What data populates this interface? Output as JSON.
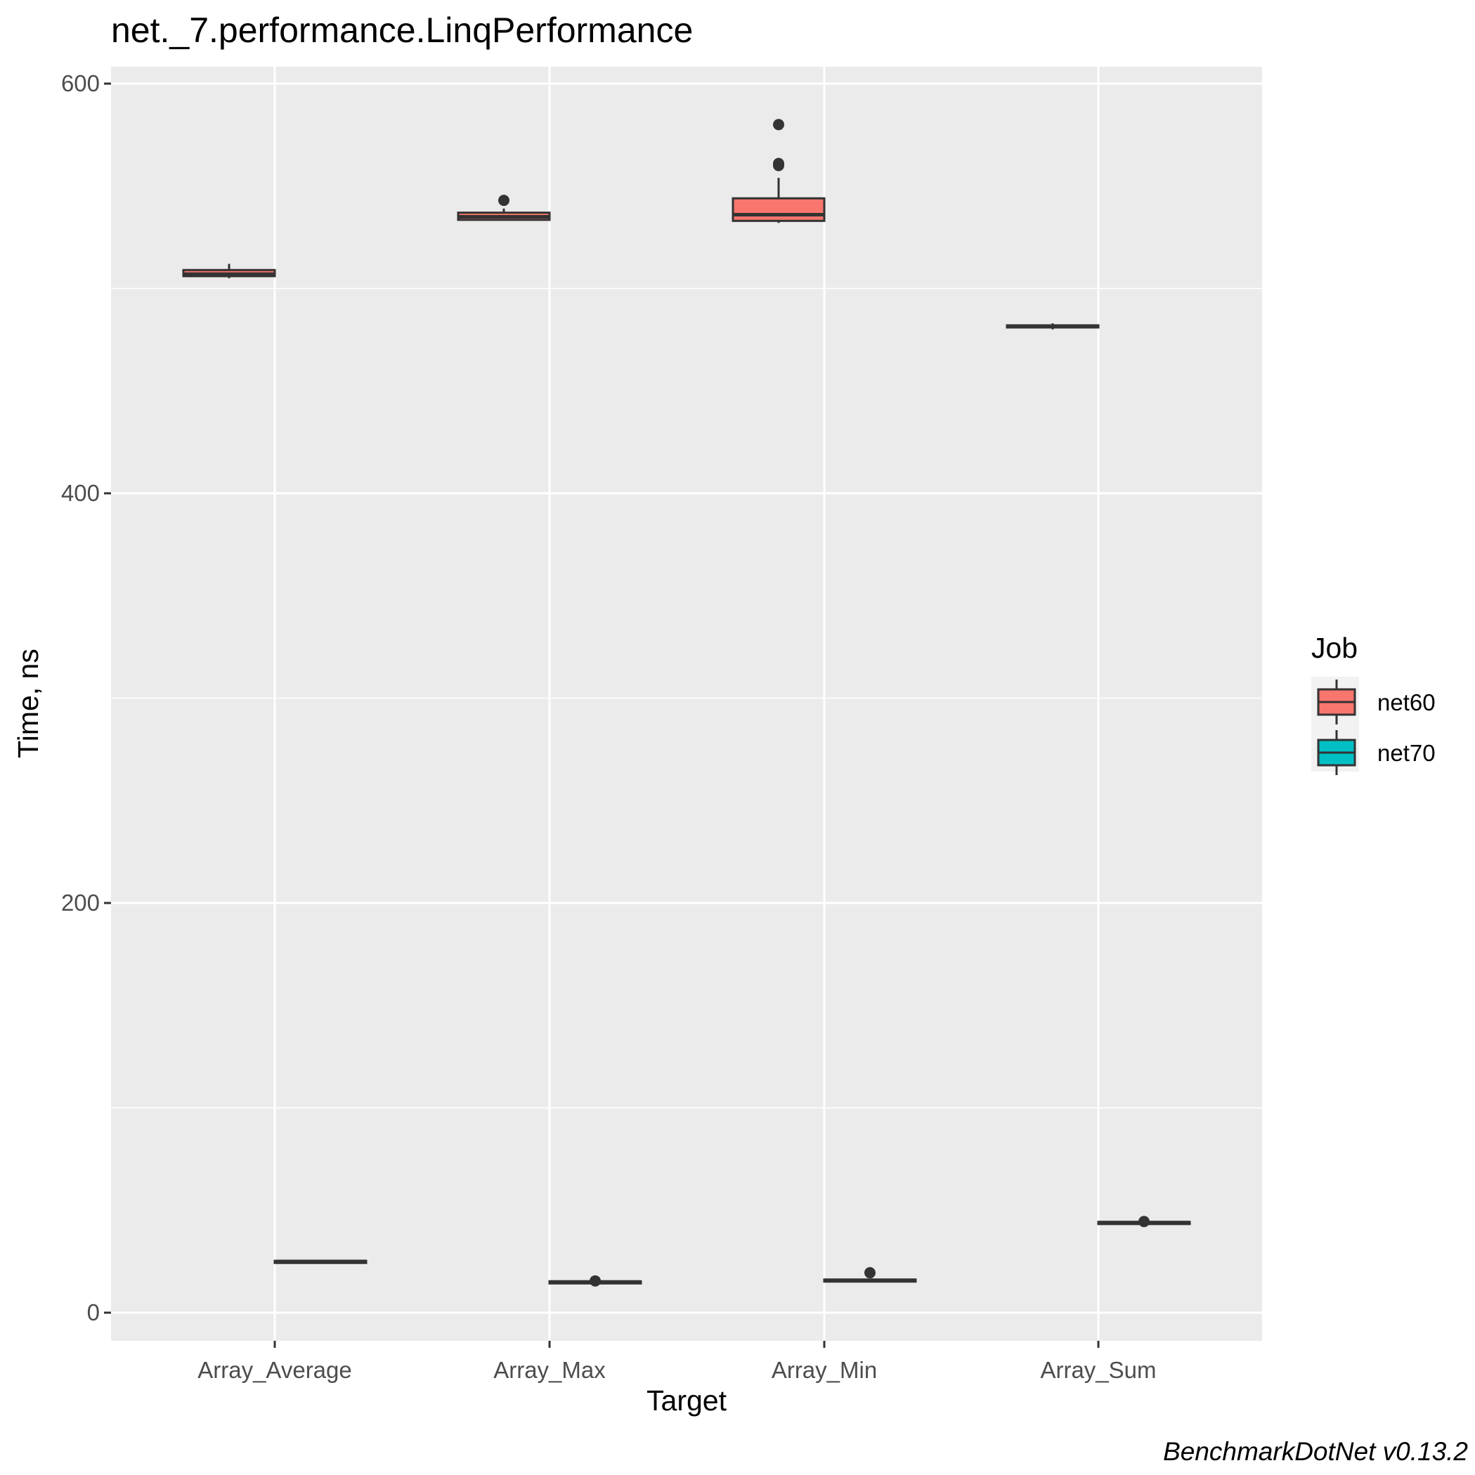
{
  "chart_data": {
    "type": "boxplot",
    "title": "net._7.performance.LinqPerformance",
    "xlabel": "Target",
    "ylabel": "Time, ns",
    "caption": "BenchmarkDotNet v0.13.2",
    "ylim": [
      -7,
      608
    ],
    "yticks": [
      0,
      200,
      400,
      600
    ],
    "grid": true,
    "legend": {
      "title": "Job",
      "position": "right"
    },
    "categories": [
      "Array_Average",
      "Array_Max",
      "Array_Min",
      "Array_Sum"
    ],
    "series": [
      {
        "name": "net60",
        "color": "#F8766D",
        "boxes": [
          {
            "min": 505,
            "q1": 506,
            "median": 507,
            "q3": 509,
            "max": 512,
            "outliers": []
          },
          {
            "min": 533,
            "q1": 533.5,
            "median": 535,
            "q3": 537,
            "max": 539,
            "outliers": [
              543
            ]
          },
          {
            "min": 532,
            "q1": 533,
            "median": 536,
            "q3": 544,
            "max": 554,
            "outliers": [
              560,
              561,
              580
            ]
          },
          {
            "min": 480,
            "q1": 481,
            "median": 481.5,
            "q3": 482,
            "max": 483,
            "outliers": []
          }
        ]
      },
      {
        "name": "net70",
        "color": "#00BFC4",
        "boxes": [
          {
            "min": 24.5,
            "q1": 24.8,
            "median": 25,
            "q3": 25.3,
            "max": 25.5,
            "outliers": []
          },
          {
            "min": 14.5,
            "q1": 14.8,
            "median": 15,
            "q3": 15.3,
            "max": 15.5,
            "outliers": [
              15.5
            ]
          },
          {
            "min": 14.8,
            "q1": 15.3,
            "median": 15.7,
            "q3": 16.2,
            "max": 16.5,
            "outliers": [
              19.5
            ]
          },
          {
            "min": 43.5,
            "q1": 43.8,
            "median": 44,
            "q3": 44.3,
            "max": 44.5,
            "outliers": [
              44.5
            ]
          }
        ]
      }
    ]
  }
}
